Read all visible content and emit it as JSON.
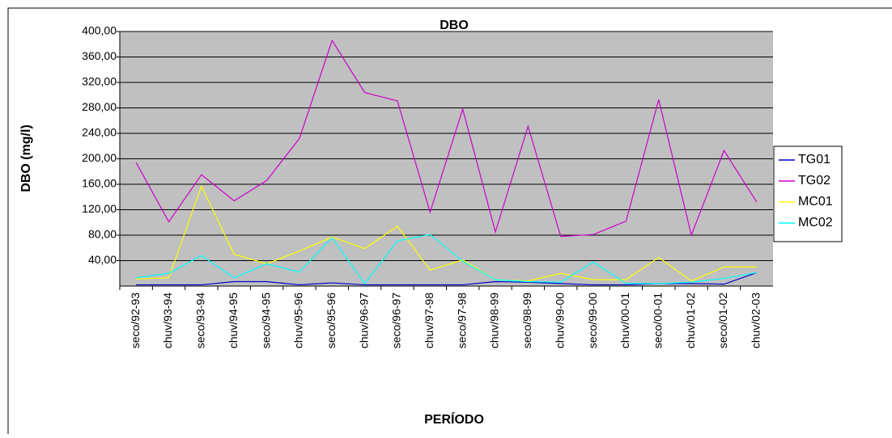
{
  "chart_data": {
    "type": "line",
    "title": "DBO",
    "y_label": "DBO (mg/l)",
    "x_label": "PERÍODO",
    "categories": [
      "seco/92-93",
      "chuv/93-94",
      "seco/93-94",
      "chuv/94-95",
      "seco/94-95",
      "chuv/95-96",
      "seco/95-96",
      "chuv/96-97",
      "seco/96-97",
      "chuv/97-98",
      "seco/97-98",
      "chuv/98-99",
      "seco/98-99",
      "chuv/99-00",
      "seco/99-00",
      "chuv/00-01",
      "seco/00-01",
      "chuv/01-02",
      "seco/01-02",
      "chuv/02-03"
    ],
    "series": [
      {
        "name": "TG01",
        "color": "#0000cc",
        "values": [
          2,
          2,
          2,
          7,
          7,
          2,
          5,
          2,
          2,
          2,
          2,
          7,
          6,
          4,
          2,
          2,
          4,
          4,
          3,
          21
        ]
      },
      {
        "name": "TG02",
        "color": "#cc00cc",
        "values": [
          194,
          101,
          175,
          134,
          166,
          232,
          386,
          304,
          291,
          116,
          278,
          85,
          251,
          78,
          81,
          102,
          293,
          80,
          213,
          132
        ]
      },
      {
        "name": "MC01",
        "color": "#ffff00",
        "values": [
          11,
          13,
          157,
          50,
          35,
          55,
          77,
          59,
          94,
          25,
          41,
          10,
          8,
          20,
          10,
          10,
          45,
          8,
          30,
          30
        ]
      },
      {
        "name": "MC02",
        "color": "#00ffff",
        "values": [
          13,
          20,
          48,
          13,
          35,
          22,
          76,
          4,
          71,
          81,
          39,
          10,
          7,
          6,
          38,
          4,
          4,
          6,
          12,
          21
        ]
      }
    ],
    "ylim": [
      0,
      400
    ],
    "yticks": [
      {
        "value": 40,
        "label": "40,00"
      },
      {
        "value": 80,
        "label": "80,00"
      },
      {
        "value": 120,
        "label": "120,00"
      },
      {
        "value": 160,
        "label": "160,00"
      },
      {
        "value": 200,
        "label": "200,00"
      },
      {
        "value": 240,
        "label": "240,00"
      },
      {
        "value": 280,
        "label": "280,00"
      },
      {
        "value": 320,
        "label": "320,00"
      },
      {
        "value": 360,
        "label": "360,00"
      },
      {
        "value": 400,
        "label": "400,00"
      }
    ],
    "grid": true,
    "legend": "right"
  }
}
